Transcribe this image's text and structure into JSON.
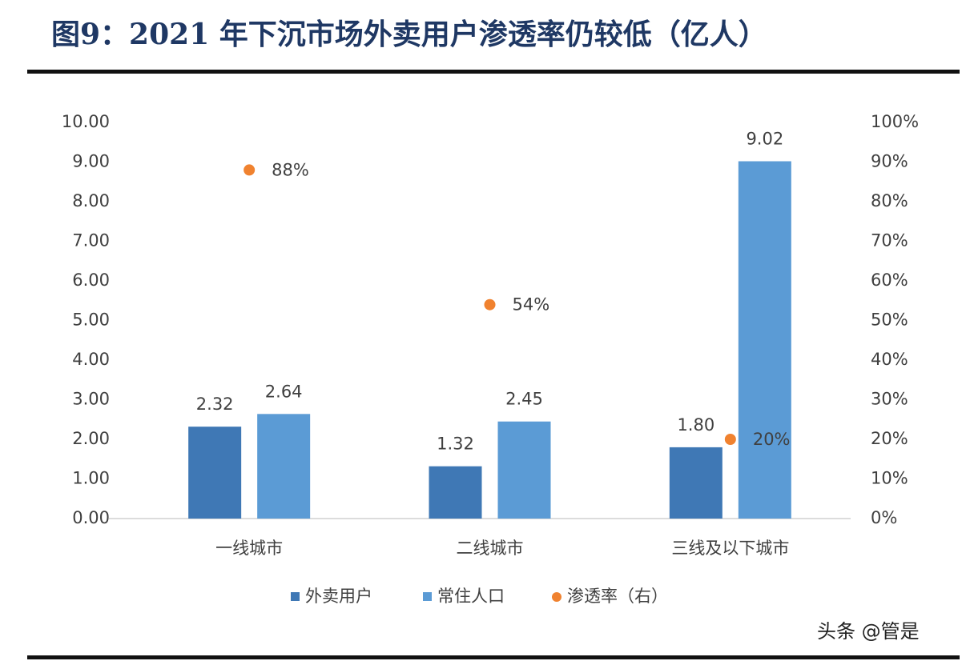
{
  "chart_data": {
    "type": "bar",
    "title": "图9：2021 年下沉市场外卖用户渗透率仍较低（亿人）",
    "categories": [
      "一线城市",
      "二线城市",
      "三线及以下城市"
    ],
    "series": [
      {
        "name": "外卖用户",
        "type": "bar",
        "color": "#3f78b5",
        "values": [
          2.32,
          1.32,
          1.8
        ],
        "value_labels": [
          "2.32",
          "1.32",
          "1.80"
        ]
      },
      {
        "name": "常住人口",
        "type": "bar",
        "color": "#5b9bd5",
        "values": [
          2.64,
          2.45,
          9.02
        ]
      },
      {
        "name": "渗透率（右）",
        "type": "scatter",
        "axis": "y2",
        "color": "#f0822f",
        "values": [
          88,
          54,
          20
        ],
        "value_labels": [
          "88%",
          "54%",
          "20%"
        ]
      }
    ],
    "ylim": [
      0,
      10
    ],
    "yticks": [
      {
        "value": 0,
        "label": "0.00"
      },
      {
        "value": 1,
        "label": "1.00"
      },
      {
        "value": 2,
        "label": "2.00"
      },
      {
        "value": 3,
        "label": "3.00"
      },
      {
        "value": 4,
        "label": "4.00"
      },
      {
        "value": 5,
        "label": "5.00"
      },
      {
        "value": 6,
        "label": "6.00"
      },
      {
        "value": 7,
        "label": "7.00"
      },
      {
        "value": 8,
        "label": "8.00"
      },
      {
        "value": 9,
        "label": "9.00"
      },
      {
        "value": 10,
        "label": "10.00"
      }
    ],
    "y2lim": [
      0,
      100
    ],
    "y2ticks": [
      {
        "value": 0,
        "label": "0%"
      },
      {
        "value": 10,
        "label": "10%"
      },
      {
        "value": 20,
        "label": "20%"
      },
      {
        "value": 30,
        "label": "30%"
      },
      {
        "value": 40,
        "label": "40%"
      },
      {
        "value": 50,
        "label": "50%"
      },
      {
        "value": 60,
        "label": "60%"
      },
      {
        "value": 70,
        "label": "70%"
      },
      {
        "value": 80,
        "label": "80%"
      },
      {
        "value": 90,
        "label": "90%"
      },
      {
        "value": 100,
        "label": "100%"
      }
    ],
    "legend": "bottom",
    "watermark": "头条 @管是"
  }
}
